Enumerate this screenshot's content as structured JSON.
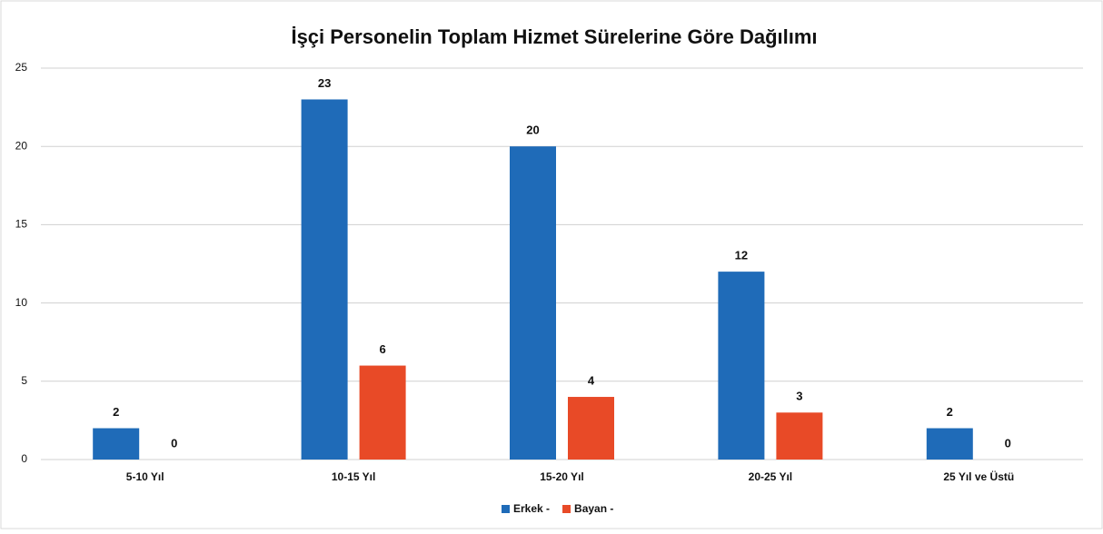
{
  "chart_data": {
    "type": "bar",
    "title": "İşçi Personelin Toplam Hizmet Sürelerine Göre Dağılımı",
    "categories": [
      "5-10 Yıl",
      "10-15 Yıl",
      "15-20 Yıl",
      "20-25 Yıl",
      "25 Yıl ve Üstü"
    ],
    "series": [
      {
        "name": "Erkek -",
        "color": "#1f6bb8",
        "values": [
          2,
          23,
          20,
          12,
          2
        ]
      },
      {
        "name": "Bayan -",
        "color": "#e84a27",
        "values": [
          0,
          6,
          4,
          3,
          0
        ]
      }
    ],
    "ylim": [
      0,
      25
    ],
    "yticks": [
      0,
      5,
      10,
      15,
      20,
      25
    ],
    "grid": true,
    "legend": "bottom"
  }
}
